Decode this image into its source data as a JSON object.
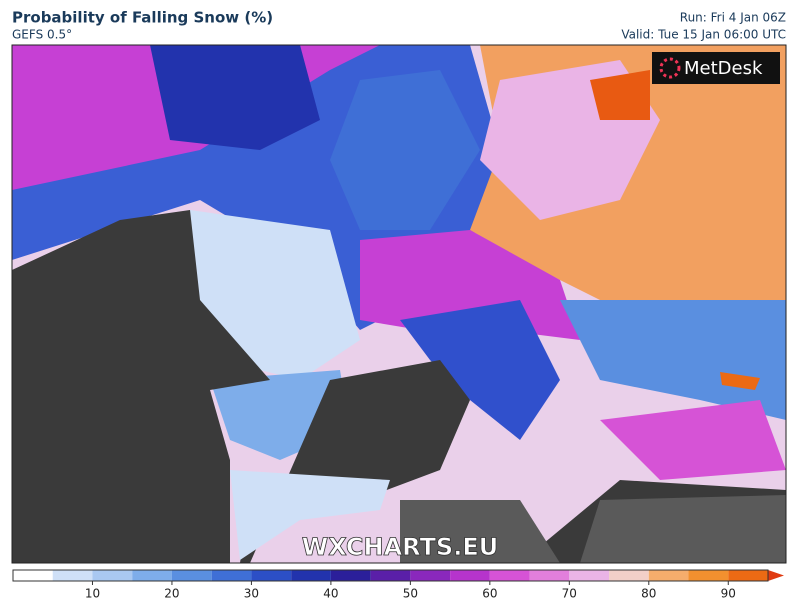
{
  "header": {
    "title": "Probability of Falling Snow (%)",
    "subtitle": "GEFS 0.5°",
    "run": "Run: Fri 4 Jan 06Z",
    "valid": "Valid: Tue 15 Jan 06:00 UTC"
  },
  "logo": "MetDesk",
  "watermark": "WXCHARTS.EU",
  "colorbar": {
    "bins": [
      0,
      5,
      10,
      15,
      20,
      25,
      30,
      35,
      40,
      45,
      50,
      55,
      60,
      65,
      70,
      75,
      80,
      85,
      90,
      95
    ],
    "colors": [
      "#ffffff",
      "#cfe0f7",
      "#a9c8f1",
      "#7eadea",
      "#5a8fe0",
      "#3f6fd6",
      "#2c4fc6",
      "#2233ad",
      "#2b1f9a",
      "#5a1fa8",
      "#8a28bc",
      "#b634cc",
      "#d653d6",
      "#e27fdc",
      "#eab4e6",
      "#f2cfc8",
      "#f5ad6c",
      "#f2902f",
      "#ec6a14"
    ],
    "over_color": "#e03a10",
    "ticks": [
      10,
      20,
      30,
      40,
      50,
      60,
      70,
      80,
      90
    ]
  }
}
